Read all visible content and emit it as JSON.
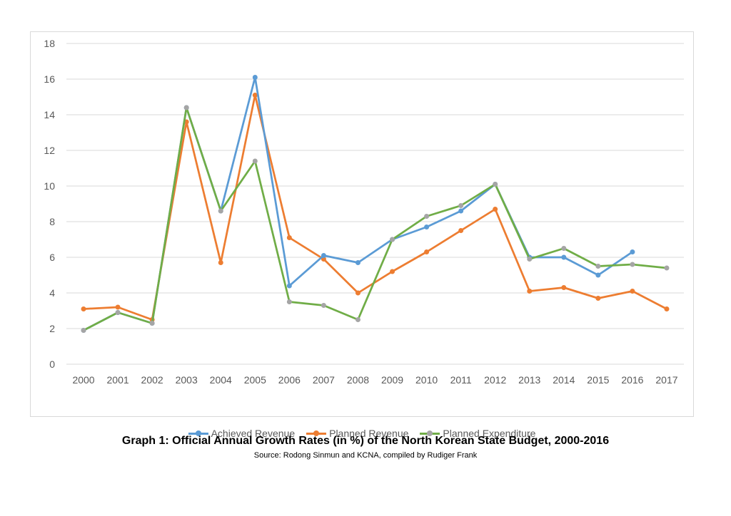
{
  "caption": {
    "title": "Graph 1: Official Annual Growth Rates (in %) of the North Korean State Budget, 2000-2016",
    "source": "Source: Rodong Sinmun and KCNA, compiled by Rudiger Frank"
  },
  "chart_data": {
    "type": "line",
    "title": "",
    "xlabel": "",
    "ylabel": "",
    "ylim": [
      0,
      18
    ],
    "yticks": [
      0,
      2,
      4,
      6,
      8,
      10,
      12,
      14,
      16,
      18
    ],
    "grid": "horizontal",
    "legend_position": "bottom",
    "categories": [
      "2000",
      "2001",
      "2002",
      "2003",
      "2004",
      "2005",
      "2006",
      "2007",
      "2008",
      "2009",
      "2010",
      "2011",
      "2012",
      "2013",
      "2014",
      "2015",
      "2016",
      "2017"
    ],
    "series": [
      {
        "name": "Achieved Revenue",
        "color": "#5b9bd5",
        "values": [
          1.9,
          2.9,
          2.3,
          14.4,
          8.6,
          16.1,
          4.4,
          6.1,
          5.7,
          7.0,
          7.7,
          8.6,
          10.1,
          6.0,
          6.0,
          5.0,
          6.3,
          null
        ]
      },
      {
        "name": "Planned Revenue",
        "color": "#ed7d31",
        "values": [
          3.1,
          3.2,
          2.5,
          13.6,
          5.7,
          15.1,
          7.1,
          5.9,
          4.0,
          5.2,
          6.3,
          7.5,
          8.7,
          4.1,
          4.3,
          3.7,
          4.1,
          3.1
        ]
      },
      {
        "name": "Planned Expenditure",
        "color": "#70ad47",
        "marker_color": "#a5a5a5",
        "values": [
          1.9,
          2.9,
          2.3,
          14.4,
          8.6,
          11.4,
          3.5,
          3.3,
          2.5,
          7.0,
          8.3,
          8.9,
          10.1,
          5.9,
          6.5,
          5.5,
          5.6,
          5.4
        ]
      }
    ]
  }
}
